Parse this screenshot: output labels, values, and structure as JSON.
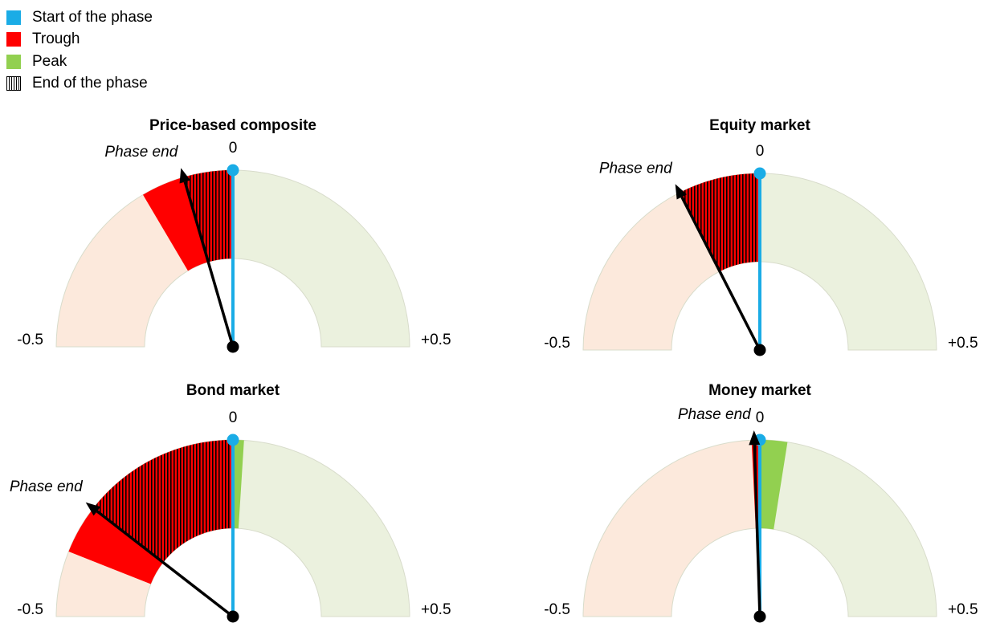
{
  "legend": {
    "items": [
      {
        "label": "Start of the phase",
        "color": "#1aace6",
        "pattern": "solid"
      },
      {
        "label": "Trough",
        "color": "#ff0000",
        "pattern": "solid"
      },
      {
        "label": "Peak",
        "color": "#92d050",
        "pattern": "solid"
      },
      {
        "label": "End of the phase",
        "color": "#000000",
        "pattern": "vertical-hatch"
      }
    ]
  },
  "colors": {
    "negative_zone": "#fce9dc",
    "positive_zone": "#ebf1de",
    "zone_outline": "#d8dccb",
    "start": "#1aace6",
    "trough": "#ff0000",
    "peak": "#92d050",
    "hatch": "#000000",
    "needle": "#000000"
  },
  "chart_data": [
    {
      "type": "gauge",
      "title": "Price-based composite",
      "range": [
        -0.5,
        0.5
      ],
      "tick_labels": {
        "min": "-0.5",
        "center": "0",
        "max": "+0.5"
      },
      "start": 0,
      "trough": -0.17,
      "peak": 0,
      "phase_end": -0.09,
      "annotation": "Phase end"
    },
    {
      "type": "gauge",
      "title": "Equity market",
      "range": [
        -0.5,
        0.5
      ],
      "tick_labels": {
        "min": "-0.5",
        "center": "0",
        "max": "+0.5"
      },
      "start": 0,
      "trough": -0.15,
      "peak": 0,
      "phase_end": -0.15,
      "annotation": "Phase end"
    },
    {
      "type": "gauge",
      "title": "Bond market",
      "range": [
        -0.5,
        0.5
      ],
      "tick_labels": {
        "min": "-0.5",
        "center": "0",
        "max": "+0.5"
      },
      "start": 0,
      "trough": -0.38,
      "peak": 0.02,
      "phase_end": -0.29,
      "annotation": "Phase end"
    },
    {
      "type": "gauge",
      "title": "Money market",
      "range": [
        -0.5,
        0.5
      ],
      "tick_labels": {
        "min": "-0.5",
        "center": "0",
        "max": "+0.5"
      },
      "start": 0,
      "trough": -0.015,
      "peak": 0.05,
      "phase_end": -0.01,
      "annotation": "Phase end"
    }
  ]
}
